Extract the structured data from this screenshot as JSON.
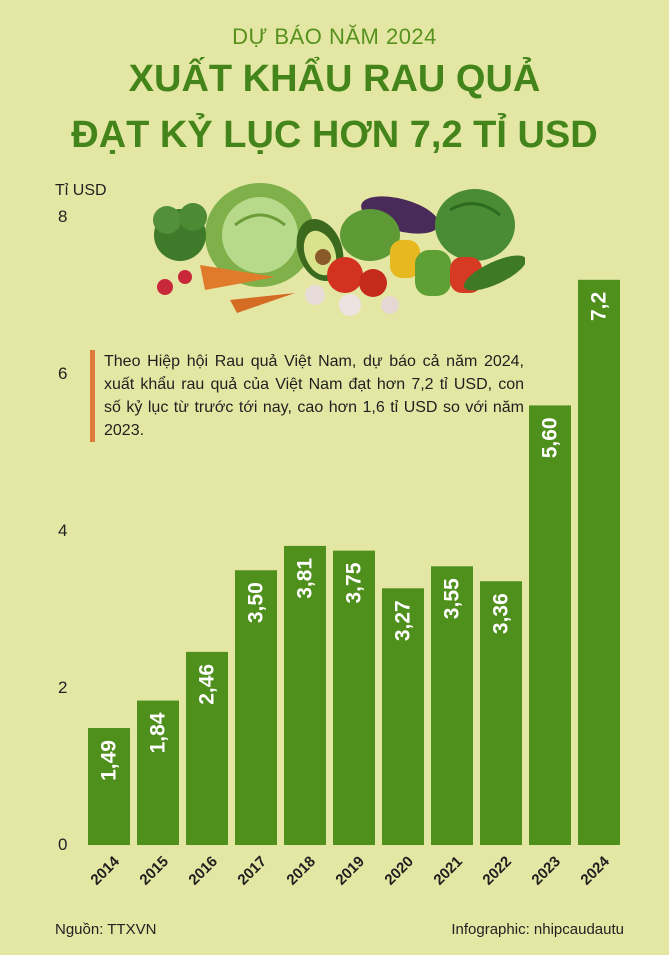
{
  "header": {
    "supertitle": "DỰ BÁO NĂM 2024",
    "title_line1": "XUẤT KHẨU RAU QUẢ",
    "title_line2": "ĐẠT KỶ LỤC HƠN 7,2 TỈ USD"
  },
  "note": "Theo Hiệp hội Rau quả Việt Nam, dự báo cả năm 2024, xuất khẩu rau quả của Việt Nam đạt hơn 7,2 tỉ USD, con số kỷ lục từ trước tới nay, cao hơn 1,6 tỉ USD so với năm 2023.",
  "footer": {
    "source": "Nguồn: TTXVN",
    "credit": "Infographic: nhipcaudautu"
  },
  "colors": {
    "background": "#e4e7a4",
    "bar": "#4f8f1c",
    "title": "#43851a",
    "accent": "#e07a3c"
  },
  "illustration": "vegetables-illustration",
  "chart_data": {
    "type": "bar",
    "ylabel": "Tỉ USD",
    "ylim": [
      0,
      8
    ],
    "yticks": [
      "0",
      "2",
      "4",
      "6",
      "8"
    ],
    "categories": [
      "2014",
      "2015",
      "2016",
      "2017",
      "2018",
      "2019",
      "2020",
      "2021",
      "2022",
      "2023",
      "2024"
    ],
    "values": [
      1.49,
      1.84,
      2.46,
      3.5,
      3.81,
      3.75,
      3.27,
      3.55,
      3.36,
      5.6,
      7.2
    ],
    "value_labels": [
      "1,49",
      "1,84",
      "2,46",
      "3,50",
      "3,81",
      "3,75",
      "3,27",
      "3,55",
      "3,36",
      "5,60",
      "7,2"
    ],
    "grid": false,
    "legend": "none"
  }
}
